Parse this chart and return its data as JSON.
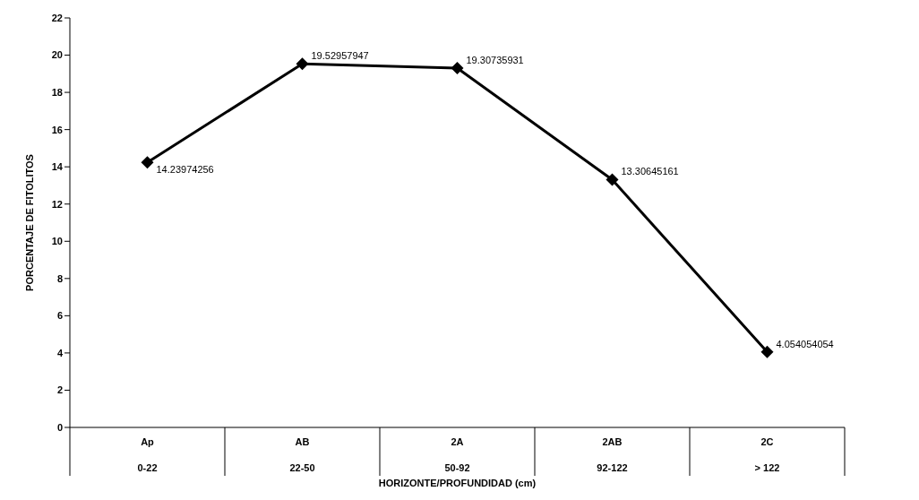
{
  "chart_data": {
    "type": "line",
    "xlabel": "HORIZONTE/PROFUNDIDAD (cm)",
    "ylabel": "PORCENTAJE DE FITOLITOS",
    "categories": [
      "Ap\n0-22",
      "AB\n22-50",
      "2A\n50-92",
      "2AB\n92-122",
      "2C\n> 122"
    ],
    "series": [
      {
        "color": "#000000",
        "values": [
          14.23974256,
          19.52957947,
          19.30735931,
          13.30645161,
          4.054054054
        ]
      }
    ],
    "ylim": [
      0,
      22
    ],
    "yticks": [
      0,
      2,
      4,
      6,
      8,
      10,
      12,
      14,
      16,
      18,
      20,
      22
    ],
    "marker": "diamond",
    "data_labels": true,
    "grid": false,
    "legend": false
  }
}
